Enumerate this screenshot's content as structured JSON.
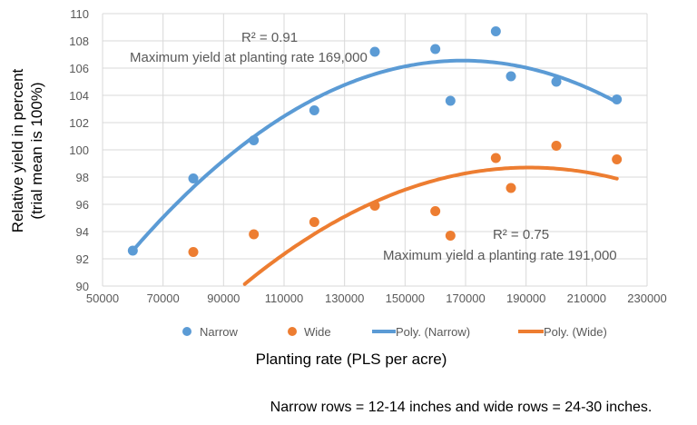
{
  "chart_data": {
    "type": "scatter",
    "title": "",
    "xlabel": "Planting rate (PLS per acre)",
    "ylabel_lines": [
      "Relative yield in percent",
      "(trial mean is 100%)"
    ],
    "xlim": [
      50000,
      230000
    ],
    "ylim": [
      90,
      110
    ],
    "x_ticks": [
      50000,
      70000,
      90000,
      110000,
      130000,
      150000,
      170000,
      190000,
      210000,
      230000
    ],
    "y_ticks": [
      90,
      92,
      94,
      96,
      98,
      100,
      102,
      104,
      106,
      108,
      110
    ],
    "grid": true,
    "legend_position": "bottom",
    "series": [
      {
        "name": "Narrow",
        "color": "#5B9BD5",
        "points": [
          [
            60000,
            92.6
          ],
          [
            80000,
            97.9
          ],
          [
            100000,
            100.7
          ],
          [
            120000,
            102.9
          ],
          [
            140000,
            107.2
          ],
          [
            160000,
            107.4
          ],
          [
            165000,
            103.6
          ],
          [
            180000,
            108.7
          ],
          [
            185000,
            105.4
          ],
          [
            200000,
            105.0
          ],
          [
            220000,
            103.7
          ]
        ]
      },
      {
        "name": "Wide",
        "color": "#ED7D31",
        "points": [
          [
            80000,
            92.5
          ],
          [
            100000,
            93.8
          ],
          [
            120000,
            94.7
          ],
          [
            140000,
            95.9
          ],
          [
            160000,
            95.5
          ],
          [
            165000,
            93.7
          ],
          [
            180000,
            99.4
          ],
          [
            185000,
            97.2
          ],
          [
            200000,
            100.3
          ],
          [
            220000,
            99.3
          ]
        ]
      }
    ],
    "trendlines": [
      {
        "name": "Poly. (Narrow)",
        "color": "#5B9BD5",
        "order": 2,
        "vertex": [
          169000,
          106.55
        ],
        "curvature": -1.174e-09,
        "x_range": [
          60000,
          220000
        ]
      },
      {
        "name": "Poly. (Wide)",
        "color": "#ED7D31",
        "order": 2,
        "vertex": [
          191000,
          98.7
        ],
        "curvature": -9.68e-10,
        "x_range": [
          60000,
          220000
        ]
      }
    ],
    "annotations": {
      "narrow_r2": "R² = 0.91",
      "narrow_max": "Maximum yield at planting rate 169,000",
      "wide_r2": "R² = 0.75",
      "wide_max": "Maximum yield a planting rate 191,000"
    },
    "legend": [
      "Narrow",
      "Wide",
      "Poly. (Narrow)",
      "Poly. (Wide)"
    ]
  },
  "footnote": "Narrow rows = 12-14 inches and wide rows = 24-30 inches."
}
